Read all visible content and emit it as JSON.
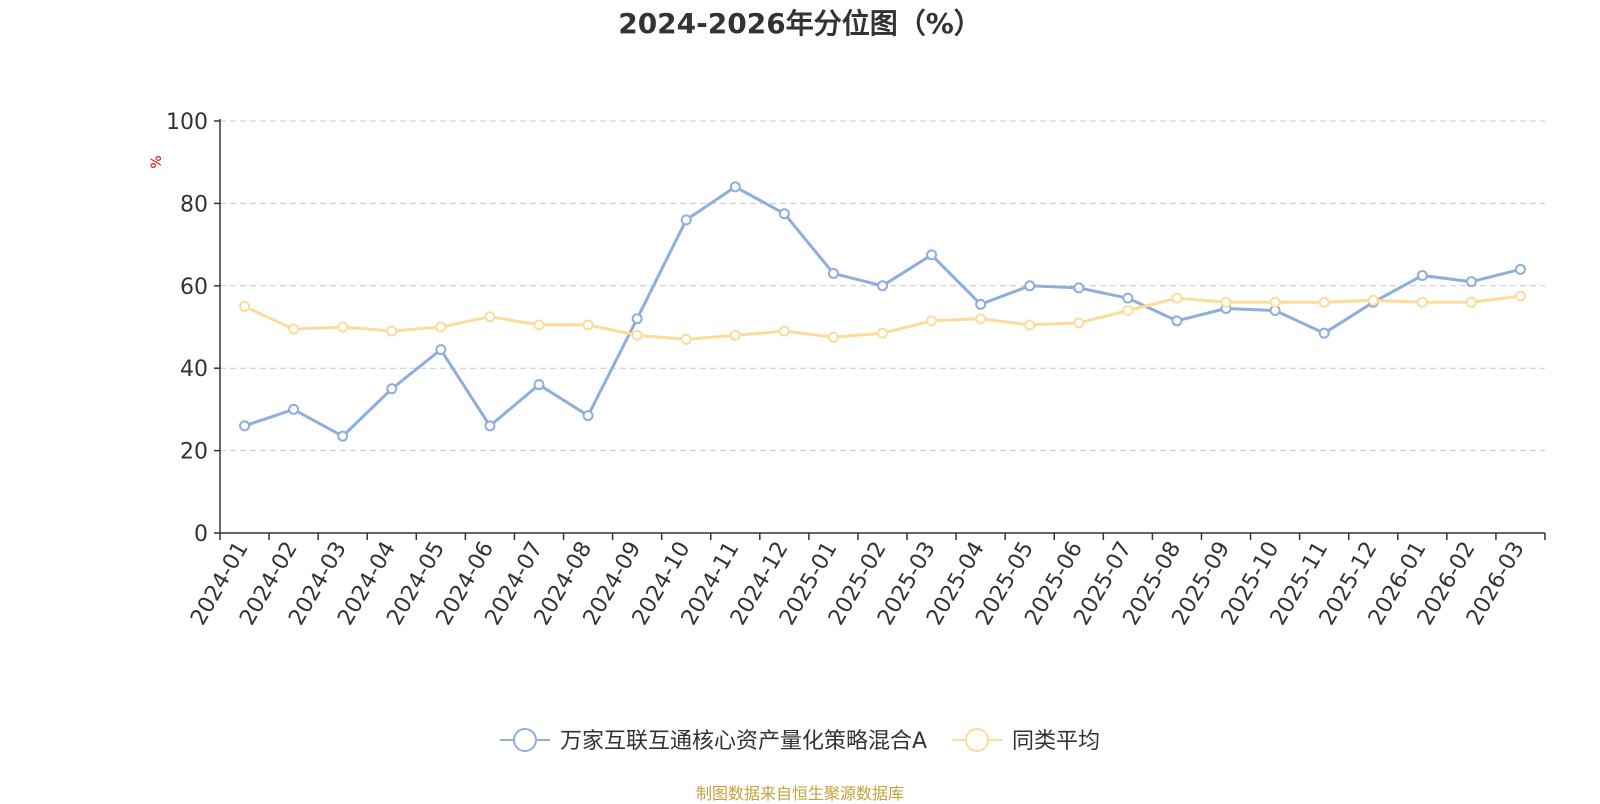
{
  "chart_data": {
    "type": "line",
    "title": "2024-2026年分位图（%）",
    "ylabel": "%",
    "ylim": [
      0,
      100
    ],
    "yticks": [
      0,
      20,
      40,
      60,
      80,
      100
    ],
    "grid": true,
    "legend_position": "bottom",
    "categories": [
      "2024-01",
      "2024-02",
      "2024-03",
      "2024-04",
      "2024-05",
      "2024-06",
      "2024-07",
      "2024-08",
      "2024-09",
      "2024-10",
      "2024-11",
      "2024-12",
      "2025-01",
      "2025-02",
      "2025-03",
      "2025-04",
      "2025-05",
      "2025-06",
      "2025-07",
      "2025-08",
      "2025-09",
      "2025-10",
      "2025-11",
      "2025-12",
      "2026-01",
      "2026-02",
      "2026-03"
    ],
    "series": [
      {
        "name": "万家互联互通核心资产量化策略混合A",
        "color": "#8eaedb",
        "values": [
          26,
          30,
          23.5,
          35,
          44.5,
          26,
          36,
          28.5,
          52,
          76,
          84,
          77.5,
          63,
          60,
          67.5,
          55.5,
          60,
          59.5,
          57,
          51.5,
          54.5,
          54,
          48.5,
          56,
          62.5,
          61,
          64
        ]
      },
      {
        "name": "同类平均",
        "color": "#fddc9b",
        "values": [
          55,
          49.5,
          50,
          49,
          50,
          52.5,
          50.5,
          50.5,
          48,
          47,
          48,
          49,
          47.5,
          48.5,
          51.5,
          52,
          50.5,
          51,
          54,
          57,
          56,
          56,
          56,
          56.5,
          56,
          56,
          57.5
        ]
      }
    ]
  },
  "source_note": "制图数据来自恒生聚源数据库"
}
